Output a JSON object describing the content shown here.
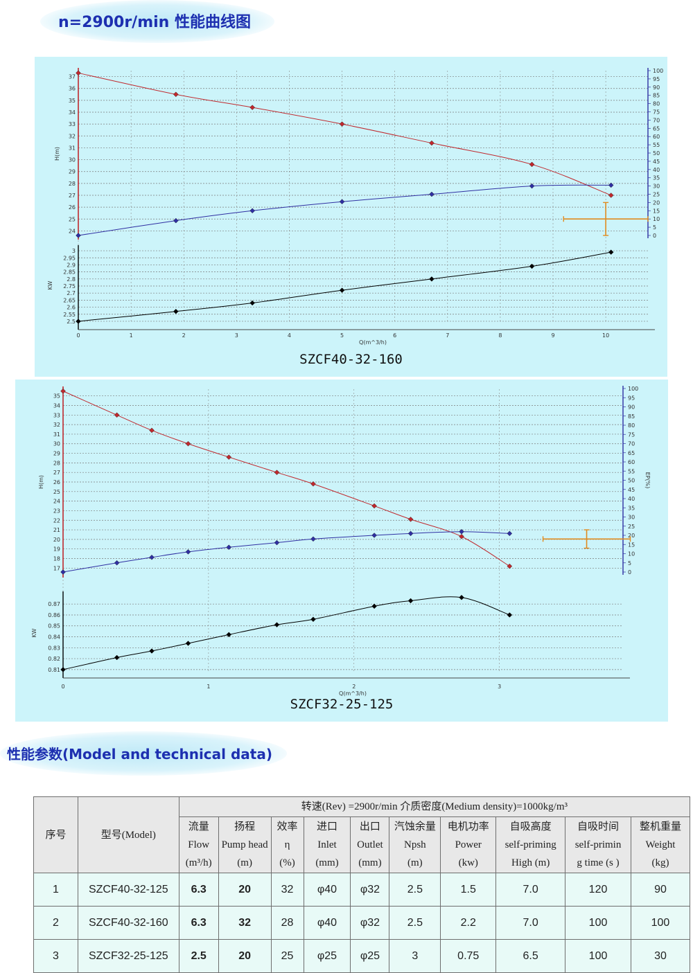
{
  "header": {
    "title": "n=2900r/min 性能曲线图"
  },
  "charts": [
    {
      "caption": "SZCF40-32-160",
      "h_label": "H(m)",
      "eff_label": "",
      "kw_label": "KW",
      "x_label": "Q(m^3/h)",
      "x_ticks": [
        "0",
        "1",
        "2",
        "3",
        "4",
        "5",
        "6",
        "7",
        "8",
        "9",
        "10"
      ],
      "h_ticks": [
        "24",
        "25",
        "26",
        "27",
        "28",
        "29",
        "30",
        "31",
        "32",
        "33",
        "34",
        "35",
        "36",
        "37"
      ],
      "eff_ticks": [
        "0",
        "5",
        "10",
        "15",
        "20",
        "25",
        "30",
        "35",
        "40",
        "45",
        "50",
        "55",
        "60",
        "65",
        "70",
        "75",
        "80",
        "85",
        "90",
        "95",
        "100"
      ],
      "kw_ticks": [
        "2.5",
        "2.55",
        "2.6",
        "2.65",
        "2.7",
        "2.75",
        "2.8",
        "2.85",
        "2.9",
        "2.95",
        "3"
      ]
    },
    {
      "caption": "SZCF32-25-125",
      "h_label": "H(m)",
      "eff_label": "EP(%)",
      "kw_label": "KW",
      "x_label": "Q(m^3/h)",
      "x_ticks": [
        "0",
        "1",
        "2",
        "3"
      ],
      "h_ticks": [
        "17",
        "18",
        "19",
        "20",
        "21",
        "22",
        "23",
        "24",
        "25",
        "26",
        "27",
        "28",
        "29",
        "30",
        "31",
        "32",
        "33",
        "34",
        "35"
      ],
      "eff_ticks": [
        "0",
        "5",
        "10",
        "15",
        "20",
        "25",
        "30",
        "35",
        "40",
        "45",
        "50",
        "55",
        "60",
        "65",
        "70",
        "75",
        "80",
        "85",
        "90",
        "95",
        "100"
      ],
      "kw_ticks": [
        "0.81",
        "0.82",
        "0.83",
        "0.84",
        "0.85",
        "0.86",
        "0.87"
      ]
    }
  ],
  "chart_data": [
    {
      "type": "line",
      "title": "SZCF40-32-160",
      "xlabel": "Q(m^3/h)",
      "xlim": [
        0,
        10.8
      ],
      "grid": true,
      "series": [
        {
          "name": "H(m)",
          "axis": "H",
          "ylim": [
            23.5,
            37.5
          ],
          "color": "#c0282d",
          "x": [
            0,
            1.85,
            3.3,
            5.0,
            6.7,
            8.6,
            10.1
          ],
          "y": [
            37.3,
            35.5,
            34.4,
            33.0,
            31.4,
            29.6,
            27.0
          ]
        },
        {
          "name": "",
          "axis": "EFF",
          "ylim": [
            0,
            100
          ],
          "color": "#2f2fa2",
          "x": [
            0,
            1.85,
            3.3,
            5.0,
            6.7,
            8.6,
            10.1
          ],
          "y": [
            0,
            9,
            15,
            20.5,
            25,
            30,
            30.5
          ]
        },
        {
          "name": "KW",
          "axis": "KW",
          "ylim": [
            2.49,
            3.02
          ],
          "color": "#000000",
          "x": [
            0,
            1.85,
            3.3,
            5.0,
            6.7,
            8.6,
            10.1
          ],
          "y": [
            2.5,
            2.57,
            2.63,
            2.72,
            2.8,
            2.89,
            2.99
          ]
        }
      ],
      "error_bar": {
        "x": 10.0,
        "xerr": 0.8,
        "y": 10,
        "yerr": 10,
        "color": "#e08a1e"
      }
    },
    {
      "type": "line",
      "title": "SZCF32-25-125",
      "xlabel": "Q(m^3/h)",
      "xlim": [
        0,
        3.85
      ],
      "grid": true,
      "series": [
        {
          "name": "H(m)",
          "axis": "H",
          "ylim": [
            16.3,
            35.7
          ],
          "color": "#c0282d",
          "x": [
            0,
            0.37,
            0.61,
            0.86,
            1.14,
            1.47,
            1.72,
            2.14,
            2.39,
            2.74,
            3.07
          ],
          "y": [
            35.5,
            33.0,
            31.4,
            30.0,
            28.6,
            27.0,
            25.8,
            23.5,
            22.1,
            20.3,
            17.2
          ]
        },
        {
          "name": "EP(%)",
          "axis": "EFF",
          "ylim": [
            0,
            100
          ],
          "color": "#2f2fa2",
          "x": [
            0,
            0.37,
            0.61,
            0.86,
            1.14,
            1.47,
            1.72,
            2.14,
            2.39,
            2.74,
            3.07
          ],
          "y": [
            0,
            5,
            8,
            11,
            13.5,
            16,
            18,
            20,
            21,
            22,
            21
          ]
        },
        {
          "name": "KW",
          "axis": "KW",
          "ylim": [
            0.808,
            0.879
          ],
          "color": "#000000",
          "x": [
            0,
            0.37,
            0.61,
            0.86,
            1.14,
            1.47,
            1.72,
            2.14,
            2.39,
            2.74,
            3.07
          ],
          "y": [
            0.81,
            0.821,
            0.827,
            0.834,
            0.842,
            0.851,
            0.856,
            0.868,
            0.873,
            0.876,
            0.86
          ]
        }
      ],
      "error_bar": {
        "x": 3.6,
        "xerr": 0.3,
        "y": 18,
        "yerr": 5,
        "color": "#e08a1e"
      }
    }
  ],
  "params": {
    "title": "性能参数(Model and technical data)",
    "table": {
      "banner": "转速(Rev) =2900r/min    介质密度(Medium density)=1000kg/m³",
      "no_header": "序号",
      "model_header": "型号(Model)",
      "columns": [
        "流量\nFlow\n(m³/h)",
        "扬程\nPump head\n(m)",
        "效率\nη\n(%)",
        "进口\nInlet\n(mm)",
        "出口\nOutlet\n(mm)",
        "汽蚀余量\nNpsh\n(m)",
        "电机功率\nPower\n(kw)",
        "自吸高度\nself-priming\nHigh (m)",
        "自吸时间\nself-primin\ng time (s )",
        "整机重量\nWeight\n(kg)"
      ],
      "rows": [
        [
          "1",
          "SZCF40-32-125",
          "6.3",
          "20",
          "32",
          "φ40",
          "φ32",
          "2.5",
          "1.5",
          "7.0",
          "120",
          "90"
        ],
        [
          "2",
          "SZCF40-32-160",
          "6.3",
          "32",
          "28",
          "φ40",
          "φ32",
          "2.5",
          "2.2",
          "7.0",
          "100",
          "100"
        ],
        [
          "3",
          "SZCF32-25-125",
          "2.5",
          "20",
          "25",
          "φ25",
          "φ25",
          "3",
          "0.75",
          "6.5",
          "100",
          "30"
        ]
      ]
    }
  }
}
